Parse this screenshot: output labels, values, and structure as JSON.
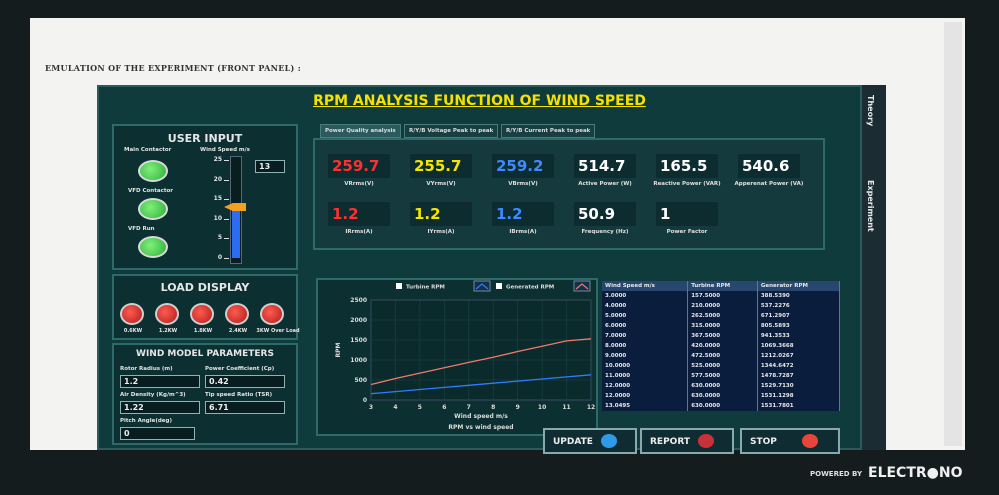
{
  "header": "EMULATION OF THE EXPERIMENT (FRONT PANEL) :",
  "panel": {
    "title": "RPM ANALYSIS FUNCTION OF WIND SPEED",
    "side_tabs": [
      "Theory",
      "Experiment"
    ]
  },
  "user_input": {
    "title": "USER INPUT",
    "switches": [
      "Main Contactor",
      "VFD Contactor",
      "VFD Run"
    ],
    "wind_speed": {
      "label": "Wind Speed m/s",
      "ticks": [
        25,
        20,
        15,
        10,
        5,
        0
      ],
      "lim": [
        0,
        25
      ],
      "value": 13
    }
  },
  "load_display": {
    "title": "LOAD DISPLAY",
    "lamps": [
      "0.6KW",
      "1.2KW",
      "1.8KW",
      "2.4KW",
      "3KW Over Load"
    ]
  },
  "wind_model": {
    "title": "WIND MODEL PARAMETERS",
    "params": [
      {
        "label": "Rotor Radius (m)",
        "value": "1.2"
      },
      {
        "label": "Power Coefficient (Cp)",
        "value": "0.42"
      },
      {
        "label": "Air Density (Kg/m^3)",
        "value": "1.22"
      },
      {
        "label": "Tip speed Ratio (TSR)",
        "value": "6.71"
      },
      {
        "label": "Pitch Angle(deg)",
        "value": "0"
      }
    ]
  },
  "tabs": [
    "Power Quality analysis",
    "R/Y/B Voltage Peak to peak",
    "R/Y/B Current Peak to peak"
  ],
  "meters": [
    {
      "value": "259.7",
      "label": "VRrms(V)",
      "color": "#ff3030"
    },
    {
      "value": "255.7",
      "label": "VYrms(V)",
      "color": "#f5e600"
    },
    {
      "value": "259.2",
      "label": "VBrms(V)",
      "color": "#3d8bff"
    },
    {
      "value": "514.7",
      "label": "Active Power (W)",
      "color": "#ffffff"
    },
    {
      "value": "165.5",
      "label": "Reactive Power (VAR)",
      "color": "#ffffff"
    },
    {
      "value": "540.6",
      "label": "Apperenat Power (VA)",
      "color": "#ffffff"
    },
    {
      "value": "1.2",
      "label": "IRrms(A)",
      "color": "#ff3030"
    },
    {
      "value": "1.2",
      "label": "IYrms(A)",
      "color": "#f5e600"
    },
    {
      "value": "1.2",
      "label": "IBrms(A)",
      "color": "#3d8bff"
    },
    {
      "value": "50.9",
      "label": "Frequency (Hz)",
      "color": "#ffffff"
    },
    {
      "value": "1",
      "label": "Power Factor",
      "color": "#ffffff"
    }
  ],
  "rpm_chart": {
    "type": "line",
    "caption": "RPM vs wind speed",
    "xlabel": "Wind speed m/s",
    "ylabel": "RPM",
    "x": [
      3,
      4,
      5,
      6,
      7,
      8,
      9,
      10,
      11,
      12
    ],
    "series": [
      {
        "name": "Turbine RPM",
        "color": "#2f7dff",
        "values": [
          157.5,
          210,
          262.5,
          315,
          367.5,
          420,
          472.5,
          525,
          577.5,
          630
        ]
      },
      {
        "name": "Generated RPM",
        "color": "#f07a6a",
        "values": [
          388.5,
          537.2,
          671.3,
          805.6,
          941.4,
          1069.4,
          1212,
          1344.6,
          1478.7,
          1529.7
        ]
      }
    ],
    "xlim": [
      3,
      12
    ],
    "ylim": [
      0,
      2500
    ],
    "xticks": [
      3,
      4,
      5,
      6,
      7,
      8,
      9,
      10,
      11,
      12
    ],
    "yticks": [
      0,
      500,
      1000,
      1500,
      2000,
      2500
    ],
    "grid": true
  },
  "table": {
    "columns": [
      "Wind Speed m/s",
      "Turbine RPM",
      "Generator RPM"
    ],
    "rows": [
      [
        "3.0000",
        "157.5000",
        "388.5390"
      ],
      [
        "4.0000",
        "210.0000",
        "537.2276"
      ],
      [
        "5.0000",
        "262.5000",
        "671.2907"
      ],
      [
        "6.0000",
        "315.0000",
        "805.5893"
      ],
      [
        "7.0000",
        "367.5000",
        "941.3533"
      ],
      [
        "8.0000",
        "420.0000",
        "1069.3668"
      ],
      [
        "9.0000",
        "472.5000",
        "1212.0267"
      ],
      [
        "10.0000",
        "525.0000",
        "1344.6472"
      ],
      [
        "11.0000",
        "577.5000",
        "1478.7287"
      ],
      [
        "12.0000",
        "630.0000",
        "1529.7130"
      ],
      [
        "12.0000",
        "630.0000",
        "1531.1298"
      ],
      [
        "13.0495",
        "630.0000",
        "1531.7801"
      ]
    ]
  },
  "buttons": [
    "UPDATE",
    "REPORT",
    "STOP"
  ],
  "footer": {
    "powered_by": "POWERED BY",
    "brand": "ELECTR●NO"
  }
}
